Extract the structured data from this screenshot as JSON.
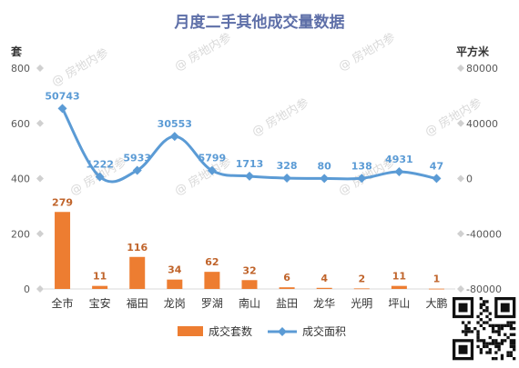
{
  "chart_data": {
    "type": "bar+line",
    "title": "月度二手其他成交量数据",
    "left_axis_unit": "套",
    "right_axis_unit": "平方米",
    "categories": [
      "全市",
      "宝安",
      "福田",
      "龙岗",
      "罗湖",
      "南山",
      "盐田",
      "龙华",
      "光明",
      "坪山",
      "大鹏"
    ],
    "series": [
      {
        "name": "成交套数",
        "type": "bar",
        "axis": "left",
        "color": "#ed7d31",
        "values": [
          279,
          11,
          116,
          34,
          62,
          32,
          6,
          4,
          2,
          11,
          1
        ]
      },
      {
        "name": "成交面积",
        "type": "line",
        "axis": "right",
        "color": "#5b9bd5",
        "values": [
          50743,
          1222,
          5933,
          30553,
          5799,
          1713,
          328,
          80,
          138,
          4931,
          47
        ]
      }
    ],
    "left_ylim": [
      0,
      800
    ],
    "left_ticks": [
      0,
      200,
      400,
      600,
      800
    ],
    "right_ylim": [
      -80000,
      80000
    ],
    "right_ticks": [
      -80000,
      -40000,
      0,
      40000,
      80000
    ],
    "legend_position": "bottom"
  },
  "watermark_text": "@ 房地内参",
  "qr_code_icon": "qr-code-icon"
}
